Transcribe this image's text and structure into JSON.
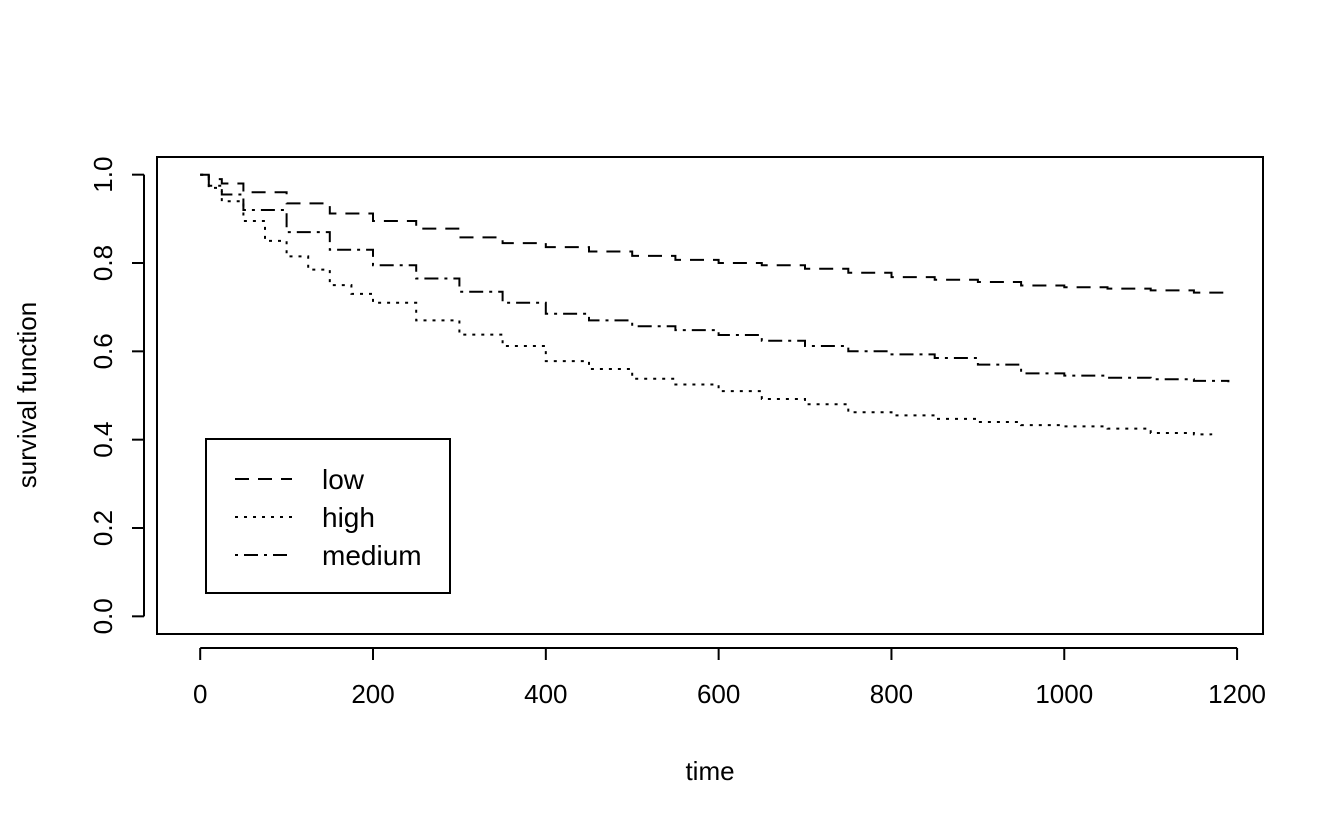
{
  "chart_data": {
    "type": "line",
    "title": "",
    "xlabel": "time",
    "ylabel": "survival function",
    "xlim": [
      -50,
      1230
    ],
    "ylim": [
      -0.04,
      1.04
    ],
    "xticks": [
      0,
      200,
      400,
      600,
      800,
      1000,
      1200
    ],
    "yticks": [
      0.0,
      0.2,
      0.4,
      0.6,
      0.8,
      1.0
    ],
    "xtick_labels": [
      "0",
      "200",
      "400",
      "600",
      "800",
      "1000",
      "1200"
    ],
    "ytick_labels": [
      "0.0",
      "0.2",
      "0.4",
      "0.6",
      "0.8",
      "1.0"
    ],
    "grid": false,
    "legend_position": "bottom-left",
    "series": [
      {
        "name": "low",
        "line_style": "dashed",
        "color": "#000000",
        "x": [
          0,
          10,
          25,
          50,
          100,
          150,
          200,
          250,
          300,
          350,
          400,
          450,
          500,
          550,
          600,
          650,
          700,
          750,
          800,
          850,
          900,
          950,
          1000,
          1050,
          1100,
          1150,
          1190
        ],
        "y": [
          1.0,
          0.99,
          0.98,
          0.96,
          0.935,
          0.912,
          0.895,
          0.878,
          0.858,
          0.845,
          0.836,
          0.826,
          0.816,
          0.807,
          0.8,
          0.795,
          0.787,
          0.778,
          0.768,
          0.762,
          0.757,
          0.749,
          0.745,
          0.742,
          0.738,
          0.733,
          0.73
        ]
      },
      {
        "name": "high",
        "line_style": "dotted",
        "color": "#000000",
        "x": [
          0,
          10,
          25,
          50,
          75,
          100,
          125,
          150,
          175,
          200,
          250,
          300,
          350,
          400,
          450,
          500,
          550,
          600,
          650,
          700,
          750,
          800,
          850,
          900,
          950,
          1000,
          1050,
          1100,
          1150,
          1170
        ],
        "y": [
          1.0,
          0.97,
          0.94,
          0.895,
          0.85,
          0.815,
          0.785,
          0.75,
          0.73,
          0.71,
          0.67,
          0.638,
          0.612,
          0.578,
          0.56,
          0.538,
          0.525,
          0.51,
          0.492,
          0.48,
          0.462,
          0.455,
          0.447,
          0.44,
          0.433,
          0.43,
          0.425,
          0.415,
          0.412,
          0.41
        ]
      },
      {
        "name": "medium",
        "line_style": "dotdash",
        "color": "#000000",
        "x": [
          0,
          10,
          25,
          50,
          100,
          150,
          200,
          250,
          300,
          350,
          400,
          450,
          500,
          550,
          600,
          650,
          700,
          750,
          800,
          850,
          900,
          950,
          1000,
          1050,
          1100,
          1150,
          1190
        ],
        "y": [
          1.0,
          0.975,
          0.955,
          0.92,
          0.87,
          0.83,
          0.795,
          0.765,
          0.735,
          0.71,
          0.685,
          0.67,
          0.657,
          0.648,
          0.637,
          0.624,
          0.612,
          0.6,
          0.593,
          0.585,
          0.57,
          0.55,
          0.545,
          0.54,
          0.537,
          0.533,
          0.53
        ]
      }
    ]
  }
}
